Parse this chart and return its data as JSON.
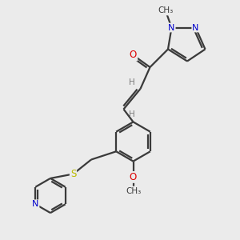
{
  "background_color": "#ebebeb",
  "atom_colors": {
    "C": "#3a3a3a",
    "H": "#7a7a7a",
    "N": "#0000cc",
    "O": "#dd0000",
    "S": "#bbbb00"
  },
  "bond_color": "#3a3a3a",
  "bond_width": 1.6,
  "figsize": [
    3.0,
    3.0
  ],
  "dpi": 100,
  "xlim": [
    0,
    10
  ],
  "ylim": [
    0,
    10
  ]
}
